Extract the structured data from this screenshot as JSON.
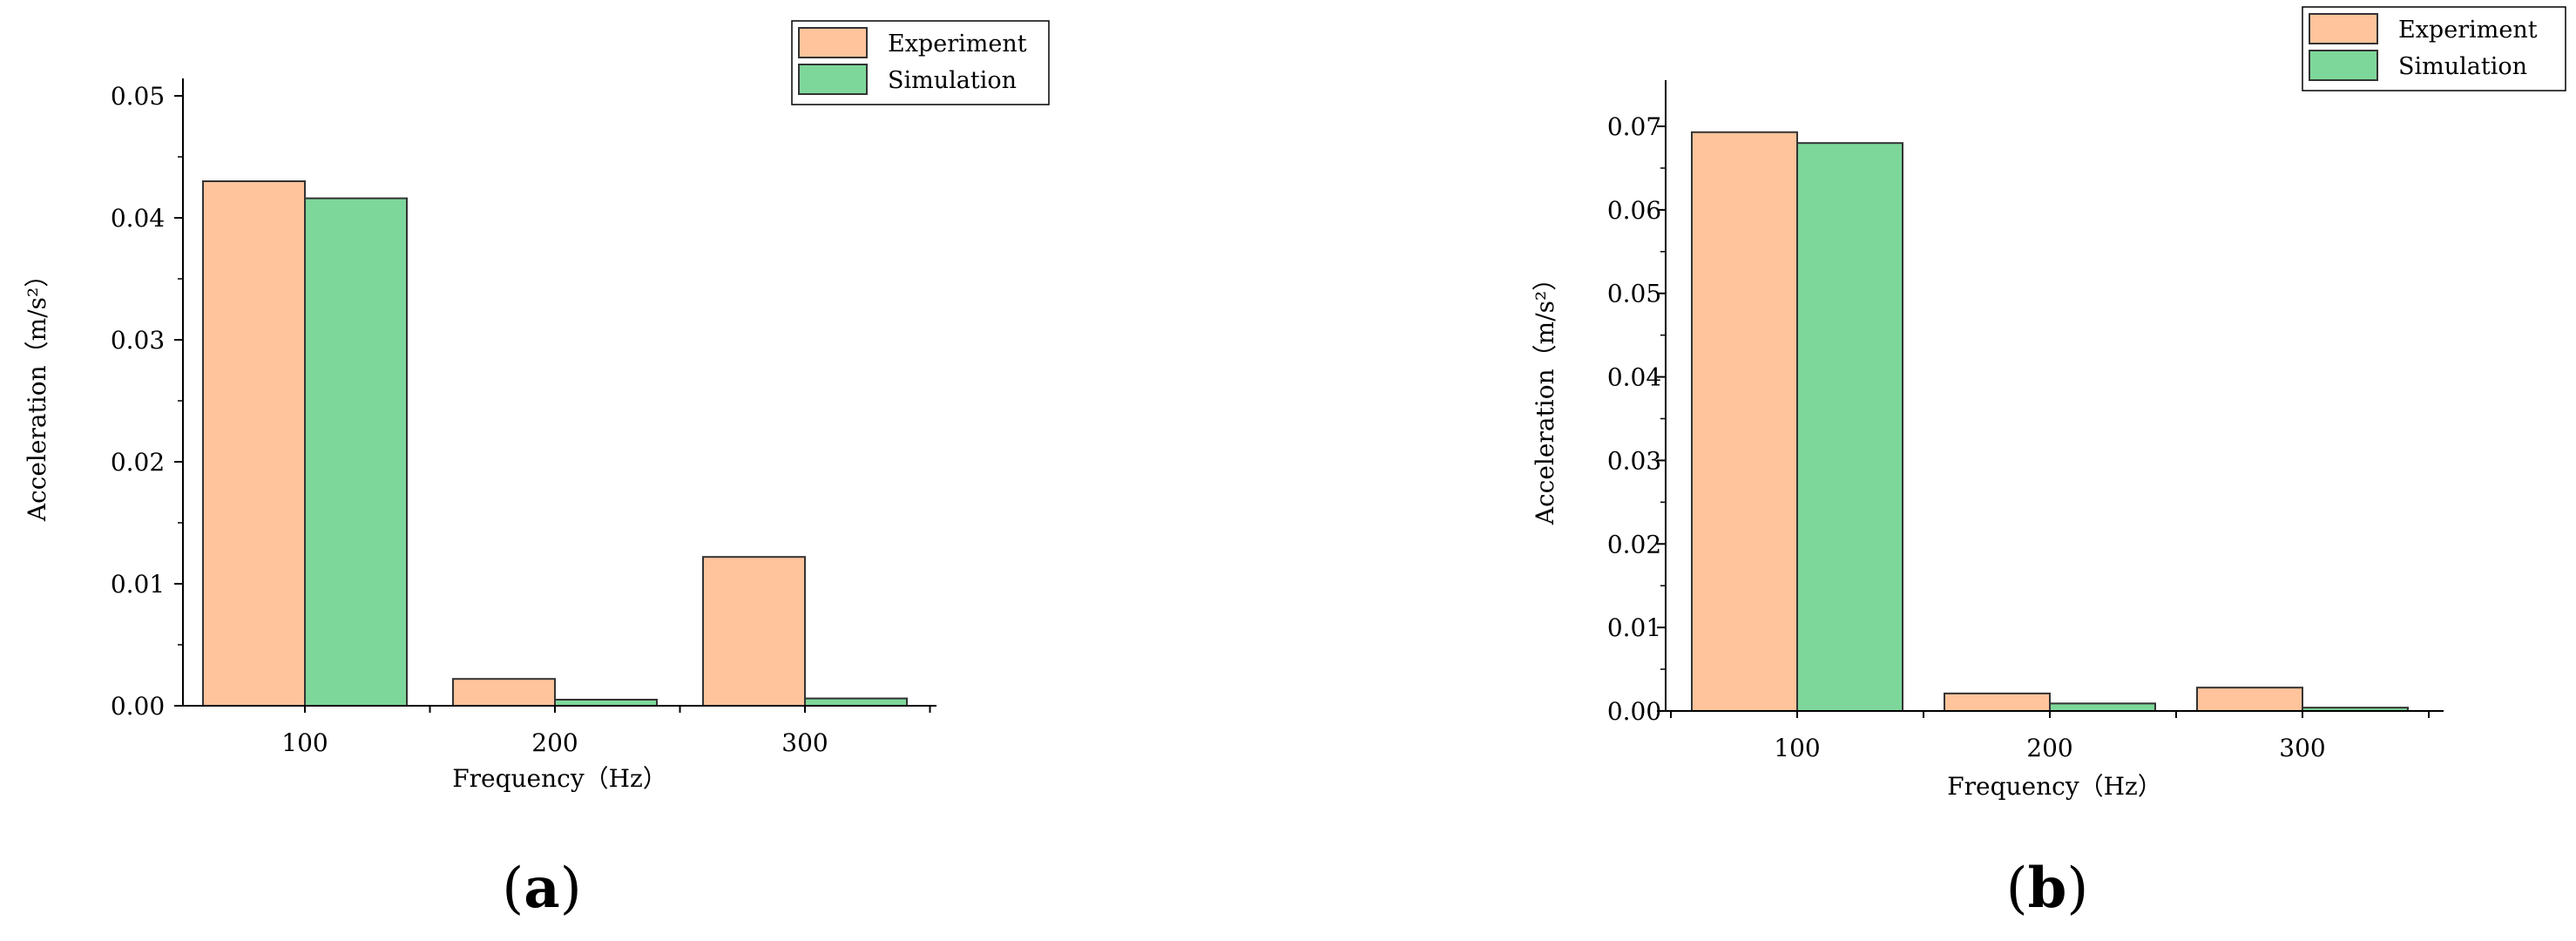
{
  "chart_data": [
    {
      "type": "bar",
      "panel_label": "a",
      "categories": [
        "100",
        "200",
        "300"
      ],
      "series": [
        {
          "name": "Experiment",
          "values": [
            0.043,
            0.0022,
            0.0122
          ]
        },
        {
          "name": "Simulation",
          "values": [
            0.0416,
            0.0005,
            0.0006
          ]
        }
      ],
      "xlabel": "Frequency（Hz）",
      "ylabel": "Acceleration（m/s²）",
      "ylim": [
        0,
        0.05
      ],
      "yticks": [
        "0.00",
        "0.01",
        "0.02",
        "0.03",
        "0.04",
        "0.05"
      ],
      "grid": false,
      "legend_position": "top-right"
    },
    {
      "type": "bar",
      "panel_label": "b",
      "categories": [
        "100",
        "200",
        "300"
      ],
      "series": [
        {
          "name": "Experiment",
          "values": [
            0.0693,
            0.0021,
            0.0028
          ]
        },
        {
          "name": "Simulation",
          "values": [
            0.068,
            0.0009,
            0.0004
          ]
        }
      ],
      "xlabel": "Frequency（Hz）",
      "ylabel": "Acceleration（m/s²）",
      "ylim": [
        0,
        0.07
      ],
      "yticks": [
        "0.00",
        "0.01",
        "0.02",
        "0.03",
        "0.04",
        "0.05",
        "0.06",
        "0.07"
      ],
      "grid": false,
      "legend_position": "top-right"
    }
  ],
  "colors": {
    "experiment": "#FFC49B",
    "simulation": "#7ED79A"
  }
}
